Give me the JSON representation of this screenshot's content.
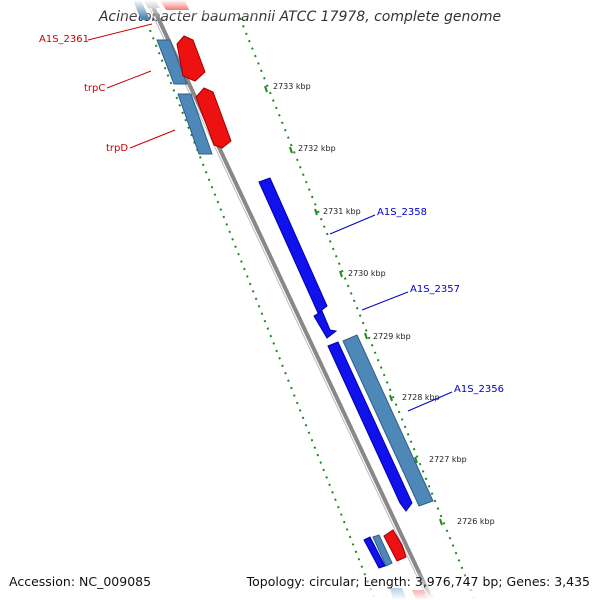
{
  "title": "Acinetobacter baumannii ATCC 17978, complete genome",
  "footer": {
    "accession": "Accession: NC_009085",
    "topology": "Topology: circular; Length: 3,976,747 bp; Genes: 3,435"
  },
  "scale_labels": [
    "2733 kbp",
    "2732 kbp",
    "2731 kbp",
    "2730 kbp",
    "2729 kbp",
    "2728 kbp",
    "2727 kbp",
    "2726 kbp"
  ],
  "gene_labels_left": [
    "A1S_2361",
    "trpC",
    "trpD"
  ],
  "gene_labels_right": [
    "A1S_2358",
    "A1S_2357",
    "A1S_2356"
  ],
  "colors": {
    "forward_gene": "#ee1111",
    "reverse_gene": "#1111ee",
    "other_gene": "#4d88b8",
    "backbone": "#888888",
    "scale_ticks": "#1f8a1f",
    "label_left": "#cc0000",
    "label_right": "#0000cc"
  }
}
